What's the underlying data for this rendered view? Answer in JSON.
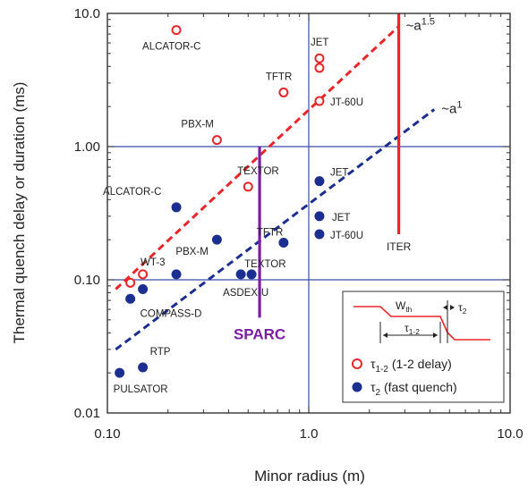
{
  "chart_data": {
    "type": "scatter",
    "xscale": "log",
    "yscale": "log",
    "xlim": [
      0.1,
      10.0
    ],
    "ylim": [
      0.01,
      10.0
    ],
    "grid": "major gridlines at x=1.0 and y=0.10, 1.00",
    "xlabel": "Minor radius (m)",
    "ylabel": "Thermal quench delay or duration (ms)",
    "x_ticks": [
      {
        "value": 0.1,
        "label": "0.10"
      },
      {
        "value": 1.0,
        "label": "1.0"
      },
      {
        "value": 10.0,
        "label": "10.0"
      }
    ],
    "y_ticks": [
      {
        "value": 0.01,
        "label": "0.01"
      },
      {
        "value": 0.1,
        "label": "0.10"
      },
      {
        "value": 1.0,
        "label": "1.00"
      },
      {
        "value": 10.0,
        "label": "10.0"
      }
    ],
    "colors": {
      "delay": "#e8262a",
      "fast": "#1c2e8f",
      "sparc": "#7b1fa2",
      "iter": "#e8262a",
      "grid": "#3a4ca8",
      "axis": "#333333"
    },
    "series": [
      {
        "name": "τ1-2 (1-2 delay)",
        "marker": "open-circle",
        "points": [
          {
            "x": 0.22,
            "y": 7.5,
            "label": "ALCATOR-C"
          },
          {
            "x": 1.13,
            "y": 4.6,
            "label": "JET"
          },
          {
            "x": 1.13,
            "y": 3.9,
            "label": ""
          },
          {
            "x": 0.75,
            "y": 2.55,
            "label": "TFTR"
          },
          {
            "x": 1.13,
            "y": 2.2,
            "label": "JT-60U"
          },
          {
            "x": 0.35,
            "y": 1.12,
            "label": "PBX-M"
          },
          {
            "x": 0.5,
            "y": 0.5,
            "label": "TEXTOR"
          },
          {
            "x": 0.15,
            "y": 0.11,
            "label": ""
          },
          {
            "x": 0.13,
            "y": 0.095,
            "label": ""
          }
        ]
      },
      {
        "name": "τ2 (fast quench)",
        "marker": "filled-circle",
        "points": [
          {
            "x": 1.13,
            "y": 0.55,
            "label": "JET"
          },
          {
            "x": 0.22,
            "y": 0.35,
            "label": "ALCATOR-C"
          },
          {
            "x": 1.13,
            "y": 0.3,
            "label": "JET"
          },
          {
            "x": 1.13,
            "y": 0.22,
            "label": "JT-60U"
          },
          {
            "x": 0.35,
            "y": 0.2,
            "label": "PBX-M"
          },
          {
            "x": 0.75,
            "y": 0.19,
            "label": "TFTR"
          },
          {
            "x": 0.22,
            "y": 0.11,
            "label": "WT-3"
          },
          {
            "x": 0.46,
            "y": 0.11,
            "label": "TEXTOR"
          },
          {
            "x": 0.52,
            "y": 0.11,
            "label": "ASDEX-U"
          },
          {
            "x": 0.15,
            "y": 0.085,
            "label": ""
          },
          {
            "x": 0.13,
            "y": 0.072,
            "label": "COMPASS-D"
          },
          {
            "x": 0.15,
            "y": 0.022,
            "label": "RTP"
          },
          {
            "x": 0.115,
            "y": 0.02,
            "label": "PULSATOR"
          }
        ]
      }
    ],
    "fit_lines": [
      {
        "label": "~a1.5",
        "base": "~a",
        "exponent": "1.5",
        "x": [
          0.11,
          2.8
        ],
        "y": [
          0.085,
          8.0
        ],
        "style": "dashed red"
      },
      {
        "label": "~a1",
        "base": "~a",
        "exponent": "1",
        "x": [
          0.11,
          4.2
        ],
        "y": [
          0.03,
          1.9
        ],
        "style": "dashed blue"
      }
    ],
    "markers": [
      {
        "label": "SPARC",
        "x": 0.57,
        "y_range": [
          0.052,
          1.0
        ],
        "color": "purple"
      },
      {
        "label": "ITER",
        "x": 2.8,
        "y_range": [
          0.22,
          10.0
        ],
        "color": "red"
      }
    ],
    "legend": {
      "placement": "bottom-right",
      "inset": {
        "wth_main": "W",
        "wth_sub": "th",
        "tau2_main": "τ",
        "tau2_sub": "2",
        "tau12_main": "τ",
        "tau12_sub": "1-2"
      },
      "entries": [
        {
          "symbol": "τ",
          "sub": "1-2",
          "rest": " (1-2 delay)",
          "marker": "open-circle"
        },
        {
          "symbol": "τ",
          "sub": "2",
          "rest": " (fast quench)",
          "marker": "filled-circle"
        }
      ]
    }
  }
}
